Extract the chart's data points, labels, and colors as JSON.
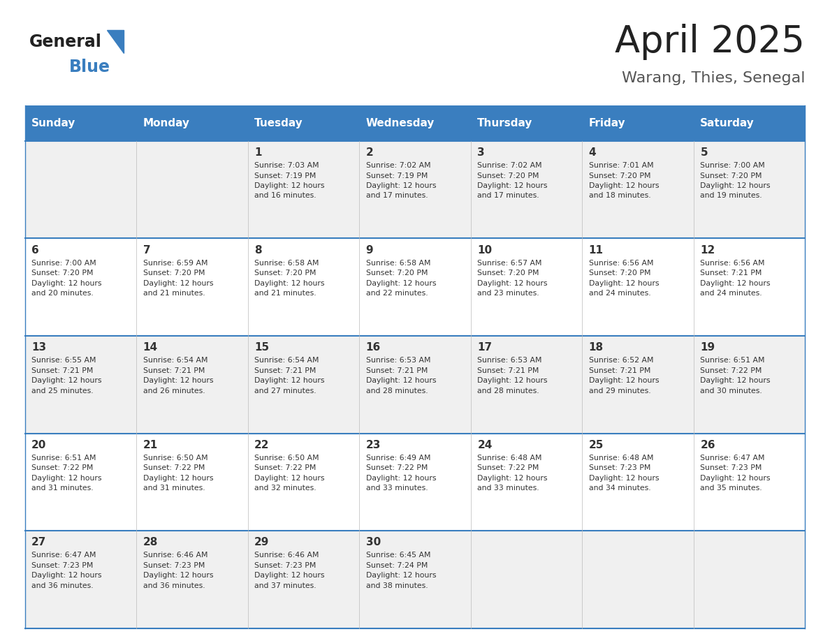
{
  "title": "April 2025",
  "subtitle": "Warang, Thies, Senegal",
  "header_bg": "#3a7ebf",
  "header_text_color": "#ffffff",
  "row_bg_odd": "#f0f0f0",
  "row_bg_even": "#ffffff",
  "border_color": "#3a7ebf",
  "text_color": "#333333",
  "days_of_week": [
    "Sunday",
    "Monday",
    "Tuesday",
    "Wednesday",
    "Thursday",
    "Friday",
    "Saturday"
  ],
  "weeks": [
    [
      {
        "day": "",
        "info": ""
      },
      {
        "day": "",
        "info": ""
      },
      {
        "day": "1",
        "info": "Sunrise: 7:03 AM\nSunset: 7:19 PM\nDaylight: 12 hours\nand 16 minutes."
      },
      {
        "day": "2",
        "info": "Sunrise: 7:02 AM\nSunset: 7:19 PM\nDaylight: 12 hours\nand 17 minutes."
      },
      {
        "day": "3",
        "info": "Sunrise: 7:02 AM\nSunset: 7:20 PM\nDaylight: 12 hours\nand 17 minutes."
      },
      {
        "day": "4",
        "info": "Sunrise: 7:01 AM\nSunset: 7:20 PM\nDaylight: 12 hours\nand 18 minutes."
      },
      {
        "day": "5",
        "info": "Sunrise: 7:00 AM\nSunset: 7:20 PM\nDaylight: 12 hours\nand 19 minutes."
      }
    ],
    [
      {
        "day": "6",
        "info": "Sunrise: 7:00 AM\nSunset: 7:20 PM\nDaylight: 12 hours\nand 20 minutes."
      },
      {
        "day": "7",
        "info": "Sunrise: 6:59 AM\nSunset: 7:20 PM\nDaylight: 12 hours\nand 21 minutes."
      },
      {
        "day": "8",
        "info": "Sunrise: 6:58 AM\nSunset: 7:20 PM\nDaylight: 12 hours\nand 21 minutes."
      },
      {
        "day": "9",
        "info": "Sunrise: 6:58 AM\nSunset: 7:20 PM\nDaylight: 12 hours\nand 22 minutes."
      },
      {
        "day": "10",
        "info": "Sunrise: 6:57 AM\nSunset: 7:20 PM\nDaylight: 12 hours\nand 23 minutes."
      },
      {
        "day": "11",
        "info": "Sunrise: 6:56 AM\nSunset: 7:20 PM\nDaylight: 12 hours\nand 24 minutes."
      },
      {
        "day": "12",
        "info": "Sunrise: 6:56 AM\nSunset: 7:21 PM\nDaylight: 12 hours\nand 24 minutes."
      }
    ],
    [
      {
        "day": "13",
        "info": "Sunrise: 6:55 AM\nSunset: 7:21 PM\nDaylight: 12 hours\nand 25 minutes."
      },
      {
        "day": "14",
        "info": "Sunrise: 6:54 AM\nSunset: 7:21 PM\nDaylight: 12 hours\nand 26 minutes."
      },
      {
        "day": "15",
        "info": "Sunrise: 6:54 AM\nSunset: 7:21 PM\nDaylight: 12 hours\nand 27 minutes."
      },
      {
        "day": "16",
        "info": "Sunrise: 6:53 AM\nSunset: 7:21 PM\nDaylight: 12 hours\nand 28 minutes."
      },
      {
        "day": "17",
        "info": "Sunrise: 6:53 AM\nSunset: 7:21 PM\nDaylight: 12 hours\nand 28 minutes."
      },
      {
        "day": "18",
        "info": "Sunrise: 6:52 AM\nSunset: 7:21 PM\nDaylight: 12 hours\nand 29 minutes."
      },
      {
        "day": "19",
        "info": "Sunrise: 6:51 AM\nSunset: 7:22 PM\nDaylight: 12 hours\nand 30 minutes."
      }
    ],
    [
      {
        "day": "20",
        "info": "Sunrise: 6:51 AM\nSunset: 7:22 PM\nDaylight: 12 hours\nand 31 minutes."
      },
      {
        "day": "21",
        "info": "Sunrise: 6:50 AM\nSunset: 7:22 PM\nDaylight: 12 hours\nand 31 minutes."
      },
      {
        "day": "22",
        "info": "Sunrise: 6:50 AM\nSunset: 7:22 PM\nDaylight: 12 hours\nand 32 minutes."
      },
      {
        "day": "23",
        "info": "Sunrise: 6:49 AM\nSunset: 7:22 PM\nDaylight: 12 hours\nand 33 minutes."
      },
      {
        "day": "24",
        "info": "Sunrise: 6:48 AM\nSunset: 7:22 PM\nDaylight: 12 hours\nand 33 minutes."
      },
      {
        "day": "25",
        "info": "Sunrise: 6:48 AM\nSunset: 7:23 PM\nDaylight: 12 hours\nand 34 minutes."
      },
      {
        "day": "26",
        "info": "Sunrise: 6:47 AM\nSunset: 7:23 PM\nDaylight: 12 hours\nand 35 minutes."
      }
    ],
    [
      {
        "day": "27",
        "info": "Sunrise: 6:47 AM\nSunset: 7:23 PM\nDaylight: 12 hours\nand 36 minutes."
      },
      {
        "day": "28",
        "info": "Sunrise: 6:46 AM\nSunset: 7:23 PM\nDaylight: 12 hours\nand 36 minutes."
      },
      {
        "day": "29",
        "info": "Sunrise: 6:46 AM\nSunset: 7:23 PM\nDaylight: 12 hours\nand 37 minutes."
      },
      {
        "day": "30",
        "info": "Sunrise: 6:45 AM\nSunset: 7:24 PM\nDaylight: 12 hours\nand 38 minutes."
      },
      {
        "day": "",
        "info": ""
      },
      {
        "day": "",
        "info": ""
      },
      {
        "day": "",
        "info": ""
      }
    ]
  ],
  "logo_general_color": "#222222",
  "logo_blue_color": "#3a7ebf",
  "title_color": "#222222",
  "subtitle_color": "#555555"
}
